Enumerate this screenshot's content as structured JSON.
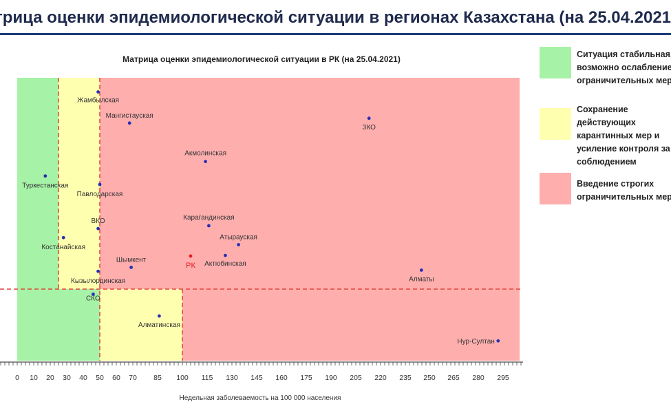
{
  "page": {
    "title": "трица оценки эпидемиологической ситуации в регионах Казахстана (на 25.04.2021)"
  },
  "colors": {
    "green": "#a6f2a6",
    "yellow": "#ffffb0",
    "red": "#ffaeae",
    "divider": "#e0433b",
    "point": "#2630b4",
    "rk_point": "#e01e1e",
    "rk_label": "#e01e1e"
  },
  "legend": [
    {
      "color": "#a6f2a6",
      "text": "Ситуация стабильная,\nвозможно ослабление\nограничительных мер"
    },
    {
      "color": "#ffffb0",
      "text": "Сохранение действующих\nкарантинных мер и\nусиление контроля за\nсоблюдением"
    },
    {
      "color": "#ffaeae",
      "text": "Введение строгих\nограничительных мер"
    }
  ],
  "chart_data": {
    "type": "scatter",
    "title": "Матрица оценки эпидемиологической ситуации в РК (на 25.04.2021)",
    "xlabel": "Недельная заболеваемость на 100 000 населения",
    "ylabel": "",
    "xlim": [
      0,
      305
    ],
    "x_ticks": [
      0,
      10,
      20,
      30,
      40,
      50,
      60,
      70,
      85,
      100,
      115,
      130,
      145,
      160,
      175,
      190,
      205,
      220,
      235,
      250,
      265,
      280,
      295
    ],
    "grid": false,
    "thresholds_x": [
      25,
      50,
      100
    ],
    "zones": [
      {
        "zone": "green",
        "x_range": [
          0,
          25
        ],
        "level": "upper"
      },
      {
        "zone": "yellow",
        "x_range": [
          25,
          50
        ],
        "level": "upper"
      },
      {
        "zone": "red",
        "x_range": [
          50,
          305
        ],
        "level": "upper"
      },
      {
        "zone": "green",
        "x_range": [
          0,
          50
        ],
        "level": "lower"
      },
      {
        "zone": "yellow",
        "x_range": [
          50,
          100
        ],
        "level": "lower"
      },
      {
        "zone": "red",
        "x_range": [
          100,
          305
        ],
        "level": "lower"
      }
    ],
    "points": [
      {
        "name": "Жамбылская",
        "x": 49,
        "y": 0.95,
        "highlight": false
      },
      {
        "name": "Мангистауская",
        "x": 68,
        "y": 0.84,
        "highlight": false
      },
      {
        "name": "ЗКО",
        "x": 213,
        "y": 0.857,
        "highlight": false
      },
      {
        "name": "Акмолинская",
        "x": 114,
        "y": 0.704,
        "highlight": false
      },
      {
        "name": "Туркестанская",
        "x": 17,
        "y": 0.653,
        "highlight": false
      },
      {
        "name": "Павлодарская",
        "x": 50,
        "y": 0.623,
        "highlight": false
      },
      {
        "name": "Карагандинская",
        "x": 116,
        "y": 0.477,
        "highlight": false
      },
      {
        "name": "ВКО",
        "x": 49,
        "y": 0.467,
        "highlight": false
      },
      {
        "name": "Костанайская",
        "x": 28,
        "y": 0.435,
        "highlight": false
      },
      {
        "name": "Атырауская",
        "x": 134,
        "y": 0.41,
        "highlight": false
      },
      {
        "name": "Шымкент",
        "x": 69,
        "y": 0.33,
        "highlight": false
      },
      {
        "name": "РК",
        "x": 105,
        "y": 0.37,
        "highlight": true
      },
      {
        "name": "Актюбинская",
        "x": 126,
        "y": 0.372,
        "highlight": false
      },
      {
        "name": "Кызылординская",
        "x": 49,
        "y": 0.316,
        "highlight": false
      },
      {
        "name": "Алматы",
        "x": 245,
        "y": 0.32,
        "highlight": false
      },
      {
        "name": "СКО",
        "x": 46,
        "y": 0.235,
        "highlight": false
      },
      {
        "name": "Алматинская",
        "x": 86,
        "y": 0.158,
        "highlight": false
      },
      {
        "name": "Нур-Султан",
        "x": 292,
        "y": 0.07,
        "highlight": false
      }
    ]
  }
}
